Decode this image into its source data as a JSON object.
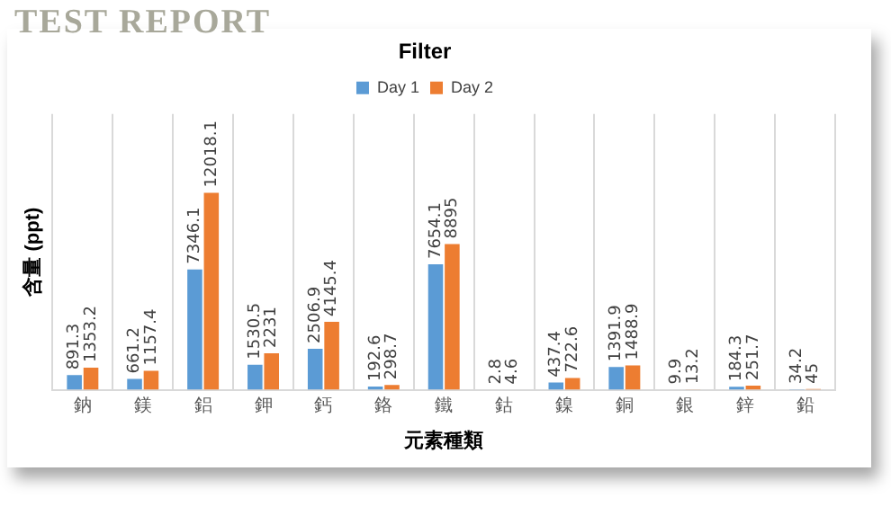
{
  "chart_data": {
    "type": "bar",
    "title": "Filter",
    "xlabel": "元素種類",
    "ylabel": "含量 (ppt)",
    "annotations": [
      "TEST REPORT"
    ],
    "categories": [
      "鈉",
      "鎂",
      "鋁",
      "鉀",
      "鈣",
      "鉻",
      "鐵",
      "鈷",
      "鎳",
      "銅",
      "銀",
      "鋅",
      "鉛"
    ],
    "series": [
      {
        "name": "Day 1",
        "color": "#5b9bd5",
        "values": [
          891.3,
          661.2,
          7346.1,
          1530.5,
          2506.9,
          192.6,
          7654.1,
          2.8,
          437.4,
          1391.9,
          9.9,
          184.3,
          34.2
        ]
      },
      {
        "name": "Day 2",
        "color": "#ed7d31",
        "values": [
          1353.2,
          1157.4,
          12018.1,
          2231,
          4145.4,
          298.7,
          8895,
          4.6,
          722.6,
          1488.9,
          13.2,
          251.7,
          45
        ]
      }
    ],
    "data_labels": true,
    "grid": "x",
    "legend": "top"
  }
}
